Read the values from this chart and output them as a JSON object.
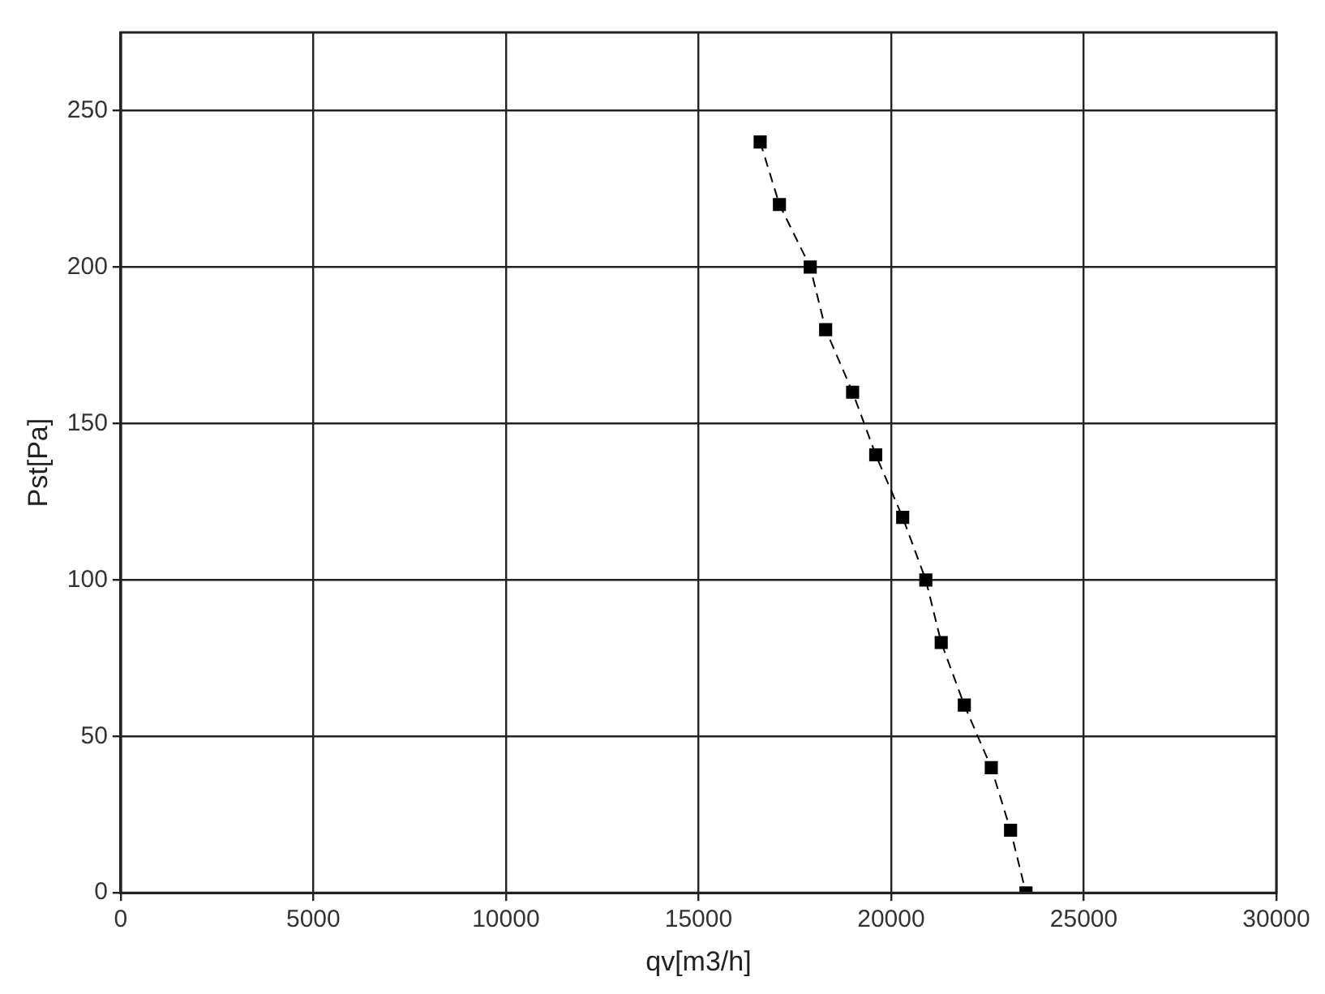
{
  "chart_data": {
    "type": "line",
    "xlabel": "qv[m3/h]",
    "ylabel": "Pst[Pa]",
    "xlim": [
      0,
      30000
    ],
    "xticks": [
      0,
      5000,
      10000,
      15000,
      20000,
      25000,
      30000
    ],
    "ylim": [
      0,
      275
    ],
    "yticks": [
      0,
      50,
      100,
      150,
      200,
      250
    ],
    "grid": true,
    "marker": "square",
    "line_style": "dashed",
    "series": [
      {
        "color": "#000000",
        "x": [
          16600,
          17100,
          17900,
          18300,
          19000,
          19600,
          20300,
          20900,
          21300,
          21900,
          22600,
          23100,
          23500
        ],
        "values": [
          240,
          220,
          200,
          180,
          160,
          140,
          120,
          100,
          80,
          60,
          40,
          20,
          0
        ]
      }
    ]
  }
}
